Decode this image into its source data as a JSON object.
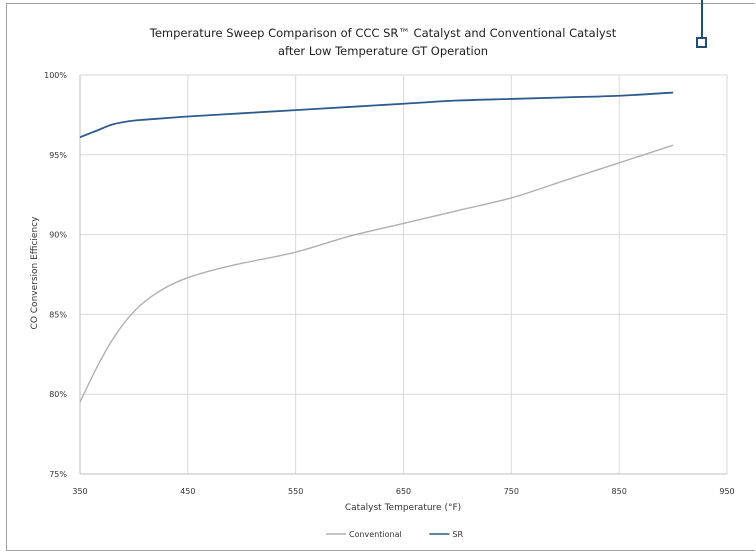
{
  "chart_data": {
    "type": "line",
    "title": [
      "Temperature Sweep Comparison of CCC SR™ Catalyst and Conventional Catalyst",
      "after Low Temperature GT Operation"
    ],
    "xlabel": "Catalyst Temperature (°F)",
    "ylabel": "CO Conversion Efficiency",
    "xlim": [
      350,
      950
    ],
    "ylim": [
      75,
      100
    ],
    "x_ticks": [
      350,
      450,
      550,
      650,
      750,
      850,
      950
    ],
    "x_tick_labels": [
      "350",
      "450",
      "550",
      "650",
      "750",
      "850",
      "950"
    ],
    "y_ticks": [
      75,
      80,
      85,
      90,
      95,
      100
    ],
    "y_tick_labels": [
      "75%",
      "80%",
      "85%",
      "90%",
      "95%",
      "100%"
    ],
    "grid": "both",
    "legend_position": "bottom",
    "series": [
      {
        "name": "Conventional",
        "color": "#b0b0b0",
        "x": [
          350,
          365,
          380,
          395,
          410,
          430,
          450,
          475,
          500,
          550,
          600,
          650,
          700,
          750,
          800,
          850,
          900
        ],
        "y": [
          79.5,
          81.6,
          83.4,
          84.8,
          85.8,
          86.7,
          87.3,
          87.8,
          88.2,
          88.9,
          89.9,
          90.7,
          91.5,
          92.3,
          93.4,
          94.5,
          95.6
        ]
      },
      {
        "name": "SR",
        "color": "#2e5a8f",
        "x": [
          350,
          365,
          380,
          395,
          410,
          450,
          500,
          550,
          600,
          650,
          700,
          750,
          800,
          850,
          900
        ],
        "y": [
          96.1,
          96.5,
          96.9,
          97.1,
          97.2,
          97.4,
          97.6,
          97.8,
          98.0,
          98.2,
          98.4,
          98.5,
          98.6,
          98.7,
          98.9
        ]
      }
    ]
  },
  "page": {
    "marker_color": "#1f4e79"
  }
}
